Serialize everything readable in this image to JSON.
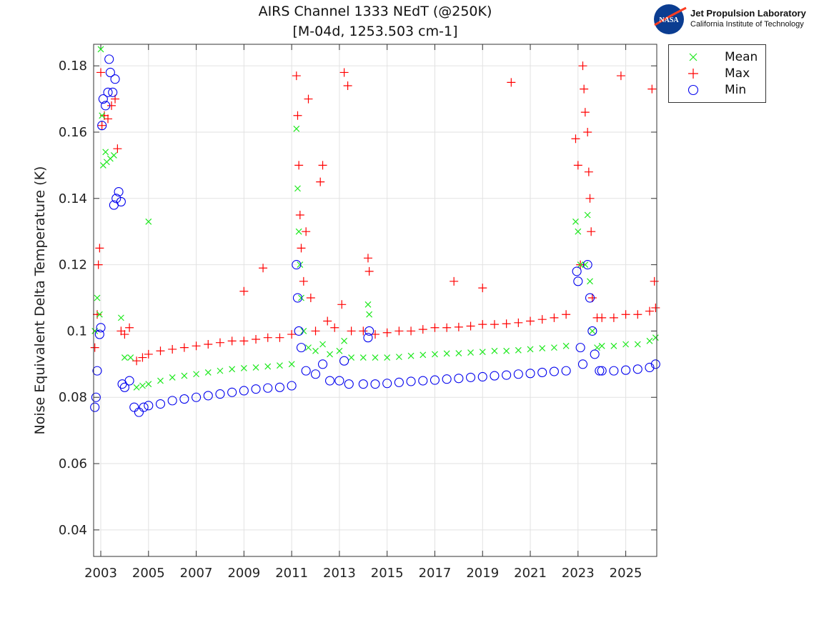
{
  "chart_data": {
    "type": "scatter",
    "title": "AIRS Channel 1333 NEdT (@250K)",
    "subtitle": "[M-04d, 1253.503 cm-1]",
    "xlabel": "",
    "ylabel": "Noise Equivalent Delta Temperature (K)",
    "xlim": [
      2002.7,
      2026.3
    ],
    "ylim": [
      0.032,
      0.1865
    ],
    "xticks": [
      "2003",
      "2005",
      "2007",
      "2009",
      "2011",
      "2013",
      "2015",
      "2017",
      "2019",
      "2021",
      "2023",
      "2025"
    ],
    "yticks": [
      "0.04",
      "0.06",
      "0.08",
      "0.1",
      "0.12",
      "0.14",
      "0.16",
      "0.18"
    ],
    "grid": true,
    "legend_position": "outside-top-right",
    "series": [
      {
        "name": "Mean",
        "marker": "x",
        "color": "#1ee81e",
        "points": [
          [
            2002.75,
            0.1
          ],
          [
            2002.85,
            0.11
          ],
          [
            2002.95,
            0.105
          ],
          [
            2003.0,
            0.185
          ],
          [
            2003.05,
            0.165
          ],
          [
            2003.1,
            0.15
          ],
          [
            2003.2,
            0.154
          ],
          [
            2003.25,
            0.151
          ],
          [
            2003.4,
            0.152
          ],
          [
            2003.55,
            0.153
          ],
          [
            2003.85,
            0.104
          ],
          [
            2004.0,
            0.092
          ],
          [
            2004.25,
            0.092
          ],
          [
            2004.5,
            0.083
          ],
          [
            2004.75,
            0.0835
          ],
          [
            2005.0,
            0.133
          ],
          [
            2005.0,
            0.084
          ],
          [
            2005.5,
            0.085
          ],
          [
            2006,
            0.086
          ],
          [
            2006.5,
            0.0865
          ],
          [
            2007,
            0.087
          ],
          [
            2007.5,
            0.0875
          ],
          [
            2008,
            0.088
          ],
          [
            2008.5,
            0.0885
          ],
          [
            2009,
            0.0888
          ],
          [
            2009.5,
            0.089
          ],
          [
            2010,
            0.0893
          ],
          [
            2010.5,
            0.0896
          ],
          [
            2011,
            0.09
          ],
          [
            2011.2,
            0.161
          ],
          [
            2011.25,
            0.143
          ],
          [
            2011.3,
            0.13
          ],
          [
            2011.35,
            0.12
          ],
          [
            2011.4,
            0.11
          ],
          [
            2011.5,
            0.1
          ],
          [
            2011.7,
            0.095
          ],
          [
            2012,
            0.094
          ],
          [
            2012.3,
            0.096
          ],
          [
            2012.6,
            0.093
          ],
          [
            2013,
            0.094
          ],
          [
            2013.2,
            0.097
          ],
          [
            2013.5,
            0.092
          ],
          [
            2014,
            0.092
          ],
          [
            2014.2,
            0.108
          ],
          [
            2014.25,
            0.105
          ],
          [
            2014.5,
            0.092
          ],
          [
            2015,
            0.092
          ],
          [
            2015.5,
            0.0922
          ],
          [
            2016,
            0.0925
          ],
          [
            2016.5,
            0.0928
          ],
          [
            2017,
            0.093
          ],
          [
            2017.5,
            0.0932
          ],
          [
            2018,
            0.0933
          ],
          [
            2018.5,
            0.0935
          ],
          [
            2019,
            0.0937
          ],
          [
            2019.5,
            0.094
          ],
          [
            2020,
            0.094
          ],
          [
            2020.5,
            0.0942
          ],
          [
            2021,
            0.0945
          ],
          [
            2021.5,
            0.0948
          ],
          [
            2022,
            0.095
          ],
          [
            2022.5,
            0.0955
          ],
          [
            2022.9,
            0.133
          ],
          [
            2023.0,
            0.13
          ],
          [
            2023.1,
            0.12
          ],
          [
            2023.3,
            0.12
          ],
          [
            2023.4,
            0.135
          ],
          [
            2023.5,
            0.115
          ],
          [
            2023.6,
            0.1
          ],
          [
            2023.8,
            0.095
          ],
          [
            2024,
            0.0955
          ],
          [
            2024.5,
            0.0955
          ],
          [
            2025,
            0.096
          ],
          [
            2025.5,
            0.096
          ],
          [
            2026,
            0.097
          ],
          [
            2026.25,
            0.098
          ]
        ]
      },
      {
        "name": "Max",
        "marker": "+",
        "color": "#ff0000",
        "points": [
          [
            2002.75,
            0.095
          ],
          [
            2002.85,
            0.105
          ],
          [
            2002.9,
            0.12
          ],
          [
            2002.95,
            0.125
          ],
          [
            2003.0,
            0.178
          ],
          [
            2003.05,
            0.162
          ],
          [
            2003.15,
            0.165
          ],
          [
            2003.3,
            0.164
          ],
          [
            2003.45,
            0.168
          ],
          [
            2003.6,
            0.17
          ],
          [
            2003.7,
            0.155
          ],
          [
            2003.85,
            0.1
          ],
          [
            2004.0,
            0.099
          ],
          [
            2004.2,
            0.101
          ],
          [
            2004.5,
            0.091
          ],
          [
            2004.75,
            0.092
          ],
          [
            2005,
            0.093
          ],
          [
            2005.5,
            0.094
          ],
          [
            2006,
            0.0945
          ],
          [
            2006.5,
            0.095
          ],
          [
            2007,
            0.0955
          ],
          [
            2007.5,
            0.096
          ],
          [
            2008,
            0.0965
          ],
          [
            2008.5,
            0.097
          ],
          [
            2009,
            0.112
          ],
          [
            2009,
            0.097
          ],
          [
            2009.5,
            0.0975
          ],
          [
            2009.8,
            0.119
          ],
          [
            2010,
            0.098
          ],
          [
            2010.5,
            0.098
          ],
          [
            2011,
            0.099
          ],
          [
            2011.2,
            0.177
          ],
          [
            2011.25,
            0.165
          ],
          [
            2011.3,
            0.15
          ],
          [
            2011.35,
            0.135
          ],
          [
            2011.4,
            0.125
          ],
          [
            2011.5,
            0.115
          ],
          [
            2011.6,
            0.13
          ],
          [
            2011.7,
            0.17
          ],
          [
            2011.8,
            0.11
          ],
          [
            2012,
            0.1
          ],
          [
            2012.2,
            0.145
          ],
          [
            2012.3,
            0.15
          ],
          [
            2012.5,
            0.103
          ],
          [
            2012.8,
            0.101
          ],
          [
            2013.1,
            0.108
          ],
          [
            2013.2,
            0.178
          ],
          [
            2013.35,
            0.174
          ],
          [
            2013.5,
            0.1
          ],
          [
            2014,
            0.1
          ],
          [
            2014.2,
            0.122
          ],
          [
            2014.25,
            0.118
          ],
          [
            2014.5,
            0.099
          ],
          [
            2015,
            0.0995
          ],
          [
            2015.5,
            0.1
          ],
          [
            2016,
            0.1
          ],
          [
            2016.5,
            0.1005
          ],
          [
            2017,
            0.101
          ],
          [
            2017.5,
            0.101
          ],
          [
            2017.8,
            0.115
          ],
          [
            2018,
            0.1012
          ],
          [
            2018.5,
            0.1015
          ],
          [
            2019,
            0.113
          ],
          [
            2019,
            0.102
          ],
          [
            2019.5,
            0.102
          ],
          [
            2020,
            0.1022
          ],
          [
            2020.2,
            0.175
          ],
          [
            2020.5,
            0.1025
          ],
          [
            2021,
            0.103
          ],
          [
            2021.5,
            0.1035
          ],
          [
            2022,
            0.104
          ],
          [
            2022.5,
            0.105
          ],
          [
            2022.9,
            0.158
          ],
          [
            2023.0,
            0.15
          ],
          [
            2023.1,
            0.12
          ],
          [
            2023.2,
            0.18
          ],
          [
            2023.25,
            0.173
          ],
          [
            2023.3,
            0.166
          ],
          [
            2023.4,
            0.16
          ],
          [
            2023.45,
            0.148
          ],
          [
            2023.5,
            0.14
          ],
          [
            2023.55,
            0.13
          ],
          [
            2023.6,
            0.11
          ],
          [
            2023.8,
            0.104
          ],
          [
            2024,
            0.104
          ],
          [
            2024.5,
            0.104
          ],
          [
            2024.8,
            0.177
          ],
          [
            2025,
            0.105
          ],
          [
            2025.5,
            0.105
          ],
          [
            2026,
            0.106
          ],
          [
            2026.1,
            0.173
          ],
          [
            2026.2,
            0.115
          ],
          [
            2026.25,
            0.107
          ]
        ]
      },
      {
        "name": "Min",
        "marker": "o",
        "color": "#0000ee",
        "points": [
          [
            2002.75,
            0.077
          ],
          [
            2002.8,
            0.08
          ],
          [
            2002.85,
            0.088
          ],
          [
            2002.95,
            0.099
          ],
          [
            2003.0,
            0.101
          ],
          [
            2003.05,
            0.162
          ],
          [
            2003.1,
            0.17
          ],
          [
            2003.2,
            0.168
          ],
          [
            2003.3,
            0.172
          ],
          [
            2003.35,
            0.182
          ],
          [
            2003.4,
            0.178
          ],
          [
            2003.5,
            0.172
          ],
          [
            2003.6,
            0.176
          ],
          [
            2003.55,
            0.138
          ],
          [
            2003.65,
            0.14
          ],
          [
            2003.75,
            0.142
          ],
          [
            2003.85,
            0.139
          ],
          [
            2003.9,
            0.084
          ],
          [
            2004.0,
            0.083
          ],
          [
            2004.2,
            0.085
          ],
          [
            2004.4,
            0.077
          ],
          [
            2004.6,
            0.0755
          ],
          [
            2004.8,
            0.077
          ],
          [
            2005,
            0.0775
          ],
          [
            2005.5,
            0.078
          ],
          [
            2006,
            0.079
          ],
          [
            2006.5,
            0.0795
          ],
          [
            2007,
            0.08
          ],
          [
            2007.5,
            0.0805
          ],
          [
            2008,
            0.081
          ],
          [
            2008.5,
            0.0815
          ],
          [
            2009,
            0.082
          ],
          [
            2009.5,
            0.0825
          ],
          [
            2010,
            0.0828
          ],
          [
            2010.5,
            0.083
          ],
          [
            2011,
            0.0835
          ],
          [
            2011.2,
            0.12
          ],
          [
            2011.25,
            0.11
          ],
          [
            2011.3,
            0.1
          ],
          [
            2011.4,
            0.095
          ],
          [
            2011.6,
            0.088
          ],
          [
            2012,
            0.087
          ],
          [
            2012.3,
            0.09
          ],
          [
            2012.6,
            0.085
          ],
          [
            2013,
            0.085
          ],
          [
            2013.2,
            0.091
          ],
          [
            2013.4,
            0.084
          ],
          [
            2014,
            0.084
          ],
          [
            2014.2,
            0.098
          ],
          [
            2014.25,
            0.1
          ],
          [
            2014.5,
            0.084
          ],
          [
            2015,
            0.0842
          ],
          [
            2015.5,
            0.0845
          ],
          [
            2016,
            0.0848
          ],
          [
            2016.5,
            0.085
          ],
          [
            2017,
            0.0852
          ],
          [
            2017.5,
            0.0855
          ],
          [
            2018,
            0.0857
          ],
          [
            2018.5,
            0.086
          ],
          [
            2019,
            0.0862
          ],
          [
            2019.5,
            0.0865
          ],
          [
            2020,
            0.0867
          ],
          [
            2020.5,
            0.087
          ],
          [
            2021,
            0.0872
          ],
          [
            2021.5,
            0.0875
          ],
          [
            2022,
            0.0878
          ],
          [
            2022.5,
            0.088
          ],
          [
            2022.95,
            0.118
          ],
          [
            2023.0,
            0.115
          ],
          [
            2023.1,
            0.095
          ],
          [
            2023.2,
            0.09
          ],
          [
            2023.4,
            0.12
          ],
          [
            2023.5,
            0.11
          ],
          [
            2023.6,
            0.1
          ],
          [
            2023.7,
            0.093
          ],
          [
            2023.9,
            0.088
          ],
          [
            2024,
            0.088
          ],
          [
            2024.5,
            0.088
          ],
          [
            2025,
            0.0882
          ],
          [
            2025.5,
            0.0885
          ],
          [
            2026,
            0.089
          ],
          [
            2026.25,
            0.09
          ]
        ]
      }
    ]
  },
  "logo": {
    "org": "Jet Propulsion Laboratory",
    "institution": "California Institute of Technology",
    "badge": "NASA"
  }
}
